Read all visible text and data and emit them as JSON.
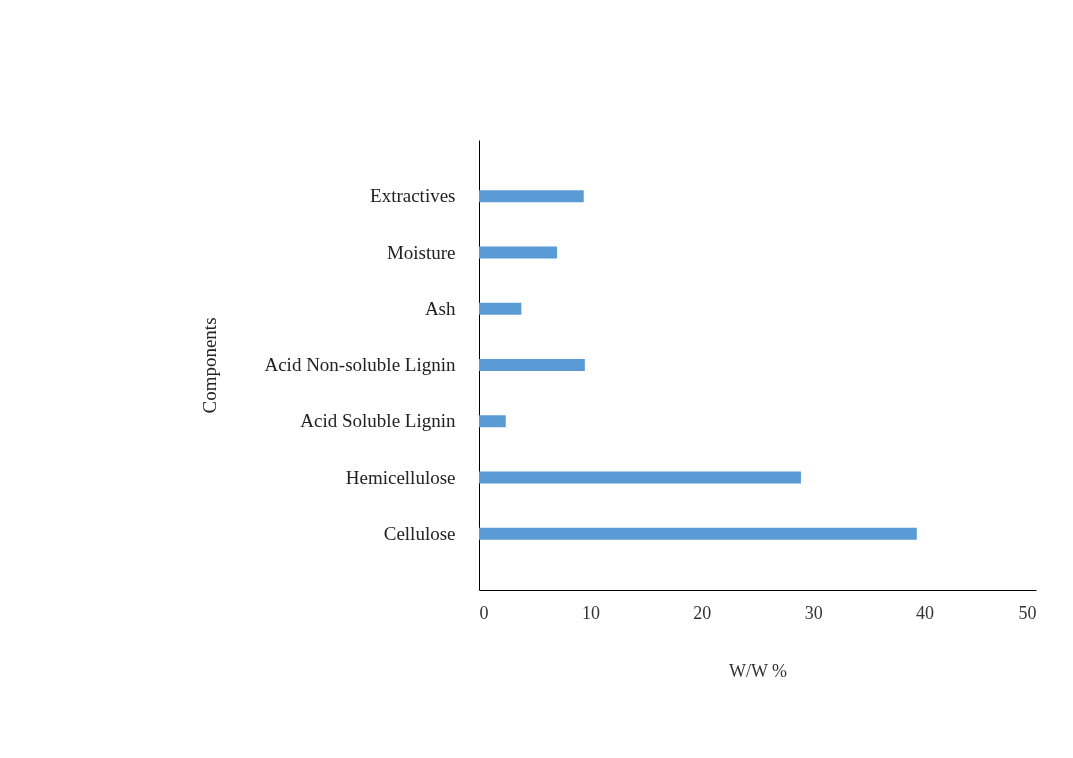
{
  "chart_data": {
    "type": "bar",
    "orientation": "horizontal",
    "categories": [
      "Extractives",
      "Moisture",
      "Ash",
      "Acid Non-soluble Lignin",
      "Acid Soluble Lignin",
      "Hemicellulose",
      "Cellulose"
    ],
    "values": [
      9.4,
      7.0,
      3.8,
      9.5,
      2.4,
      28.9,
      39.3
    ],
    "color": "#5b9bd5",
    "xlabel": "W/W %",
    "ylabel": "Components",
    "xlim": [
      0,
      50
    ],
    "xticks": [
      0,
      10,
      20,
      30,
      40,
      50
    ],
    "grid": false
  }
}
